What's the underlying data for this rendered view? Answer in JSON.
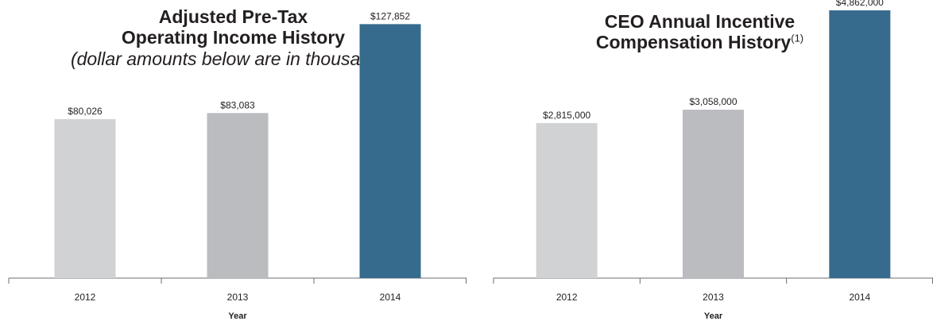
{
  "chart_data": [
    {
      "type": "bar",
      "title_lines": [
        "Adjusted Pre-Tax",
        "Operating Income History"
      ],
      "subtitle": "(dollar amounts below are in thousands)",
      "xlabel": "Year",
      "ylabel": "",
      "categories": [
        "2012",
        "2013",
        "2014"
      ],
      "values": [
        80026,
        83083,
        127852
      ],
      "value_labels": [
        "$80,026",
        "$83,083",
        "$127,852"
      ],
      "ylim": [
        0,
        140000
      ],
      "bar_colors": [
        "#d1d2d4",
        "#bbbcc0",
        "#376b8e"
      ]
    },
    {
      "type": "bar",
      "title_lines": [
        "CEO Annual Incentive",
        "Compensation History"
      ],
      "title_footnote": "(1)",
      "xlabel": "Year",
      "ylabel": "",
      "categories": [
        "2012",
        "2013",
        "2014"
      ],
      "values": [
        2815000,
        3058000,
        4862000
      ],
      "value_labels": [
        "$2,815,000",
        "$3,058,000",
        "$4,862,000"
      ],
      "ylim": [
        0,
        5050000
      ],
      "bar_colors": [
        "#d1d2d4",
        "#bbbcc0",
        "#376b8e"
      ]
    }
  ],
  "colors": {
    "axis": "#6d6e71",
    "text": "#231f20"
  }
}
